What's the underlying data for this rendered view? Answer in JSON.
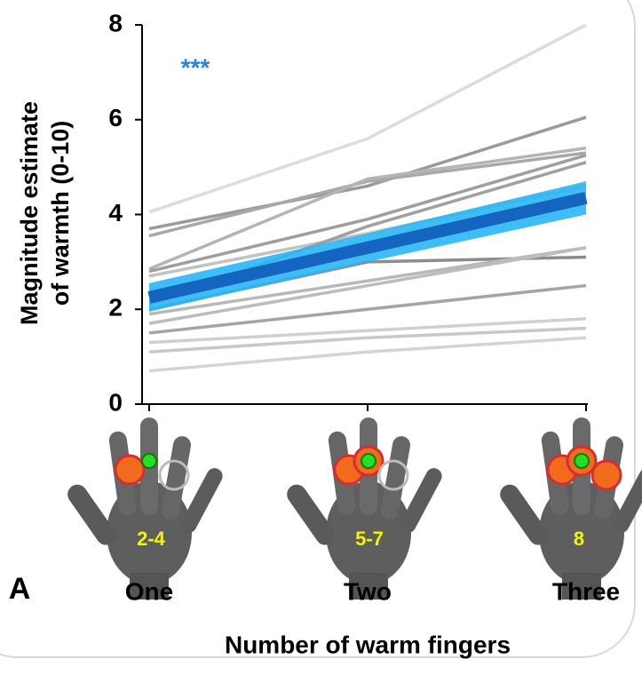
{
  "chart_data": {
    "type": "line",
    "ylabel": [
      "Magnitude estimate",
      "of warmth (0-10)"
    ],
    "xlabel": "Number of warm fingers",
    "annotation": "***",
    "panel_label": "A",
    "categories": [
      "One",
      "Two",
      "Three"
    ],
    "hand_labels": [
      "2-4",
      "5-7",
      "8"
    ],
    "ylim": [
      0,
      8
    ],
    "yticks": [
      0,
      2,
      4,
      6,
      8
    ],
    "series": [
      {
        "color": "#dcdcdc",
        "values": [
          4.05,
          5.6,
          8.0
        ]
      },
      {
        "color": "#9a9a9a",
        "values": [
          3.7,
          4.6,
          6.05
        ]
      },
      {
        "color": "#a8a8a8",
        "values": [
          3.55,
          4.7,
          5.3
        ]
      },
      {
        "color": "#b4b4b4",
        "values": [
          2.85,
          4.75,
          5.4
        ]
      },
      {
        "color": "#9e9e9e",
        "values": [
          2.8,
          3.9,
          5.25
        ]
      },
      {
        "color": "#c2c2c2",
        "values": [
          2.7,
          3.6,
          4.6
        ]
      },
      {
        "color": "#a0a0a0",
        "values": [
          2.1,
          3.75,
          5.1
        ]
      },
      {
        "color": "#8c8c8c",
        "values": [
          2.0,
          3.0,
          3.1
        ]
      },
      {
        "color": "#b8b8b8",
        "values": [
          1.9,
          2.6,
          3.3
        ]
      },
      {
        "color": "#a4a4a4",
        "values": [
          1.5,
          2.0,
          2.5
        ]
      },
      {
        "color": "#cfcfcf",
        "values": [
          1.3,
          1.55,
          1.8
        ]
      },
      {
        "color": "#c8c8c8",
        "values": [
          1.1,
          1.4,
          1.6
        ]
      },
      {
        "color": "#d4d4d4",
        "values": [
          0.7,
          1.1,
          1.4
        ]
      },
      {
        "color": "#bcbcbc",
        "values": [
          1.7,
          2.5,
          3.3
        ]
      },
      {
        "color": "#1565c0",
        "band_color": "#29b6f6",
        "values": [
          2.25,
          3.3,
          4.35
        ],
        "ci_upper": [
          2.55,
          3.6,
          4.7
        ],
        "ci_lower": [
          1.95,
          3.0,
          4.0
        ]
      }
    ]
  }
}
